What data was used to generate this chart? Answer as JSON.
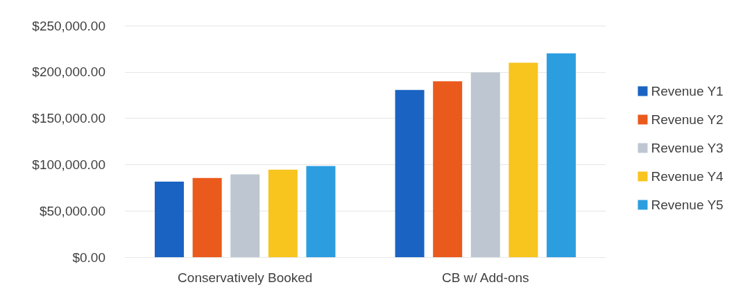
{
  "chart_data": {
    "type": "bar",
    "categories": [
      "Conservatively Booked",
      "CB w/ Add-ons"
    ],
    "series": [
      {
        "name": "Revenue Y1",
        "color": "#1a63c2",
        "values": [
          81500,
          180500
        ]
      },
      {
        "name": "Revenue Y2",
        "color": "#ea5a1c",
        "values": [
          85500,
          190000
        ]
      },
      {
        "name": "Revenue Y3",
        "color": "#bec7d1",
        "values": [
          89500,
          199500
        ]
      },
      {
        "name": "Revenue Y4",
        "color": "#f8c41e",
        "values": [
          94500,
          210000
        ]
      },
      {
        "name": "Revenue Y5",
        "color": "#2c9ee0",
        "values": [
          98500,
          220000
        ]
      }
    ],
    "ylim": [
      0,
      250000
    ],
    "yticks": [
      {
        "value": 0,
        "label": "$0.00"
      },
      {
        "value": 50000,
        "label": "$50,000.00"
      },
      {
        "value": 100000,
        "label": "$100,000.00"
      },
      {
        "value": 150000,
        "label": "$150,000.00"
      },
      {
        "value": 200000,
        "label": "$200,000.00"
      },
      {
        "value": 250000,
        "label": "$250,000.00"
      }
    ],
    "grid": "y",
    "legend": "right"
  }
}
